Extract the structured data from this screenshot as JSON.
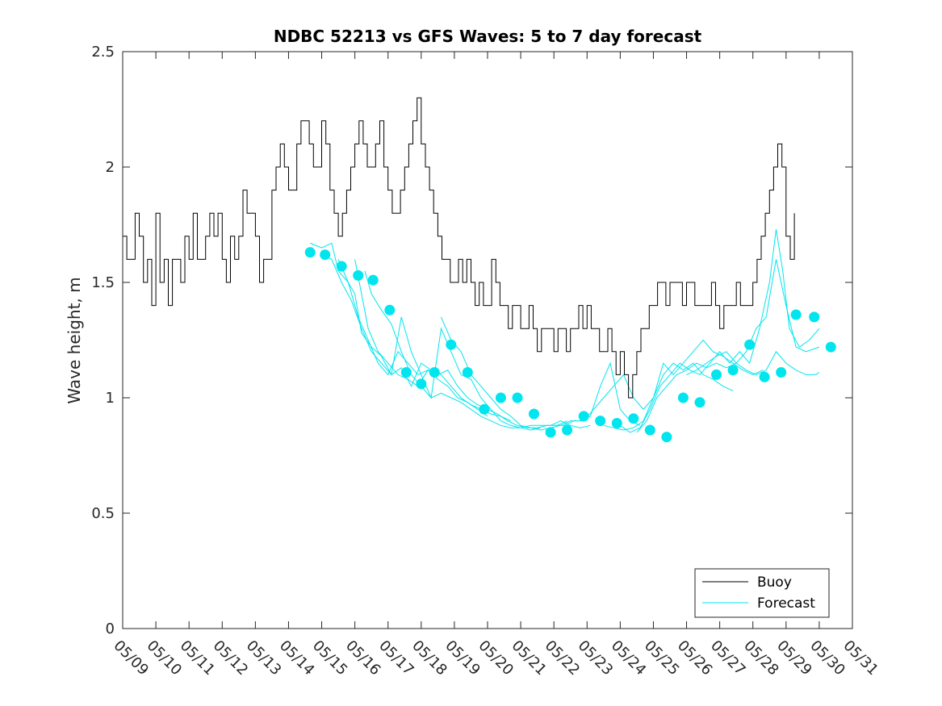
{
  "chart_data": {
    "type": "line",
    "title": "NDBC 52213 vs GFS Waves: 5 to 7 day forecast",
    "xlabel": "",
    "ylabel": "Wave height, m",
    "xlim": [
      "05/09",
      "05/31"
    ],
    "ylim": [
      0,
      2.5
    ],
    "x_ticks": [
      "05/09",
      "05/10",
      "05/11",
      "05/12",
      "05/13",
      "05/14",
      "05/15",
      "05/16",
      "05/17",
      "05/18",
      "05/19",
      "05/20",
      "05/21",
      "05/22",
      "05/23",
      "05/24",
      "05/25",
      "05/26",
      "05/27",
      "05/28",
      "05/29",
      "05/30",
      "05/31"
    ],
    "y_ticks": [
      "0",
      "0.5",
      "1",
      "1.5",
      "2",
      "2.5"
    ],
    "grid": false,
    "legend_position": "bottom-right",
    "legend": [
      {
        "label": "Buoy",
        "color": "#000000"
      },
      {
        "label": "Forecast",
        "color": "#00e5ee"
      }
    ],
    "colors": {
      "buoy": "#000000",
      "forecast": "#00e5ee",
      "marker": "#00e5ee"
    },
    "series": [
      {
        "name": "Buoy",
        "x_start": "05/09",
        "x_step_days": 0.125,
        "values": [
          1.7,
          1.6,
          1.6,
          1.8,
          1.7,
          1.5,
          1.6,
          1.4,
          1.8,
          1.5,
          1.6,
          1.4,
          1.6,
          1.6,
          1.5,
          1.7,
          1.6,
          1.8,
          1.6,
          1.6,
          1.7,
          1.8,
          1.7,
          1.8,
          1.6,
          1.5,
          1.7,
          1.6,
          1.7,
          1.9,
          1.8,
          1.8,
          1.7,
          1.5,
          1.6,
          1.6,
          1.9,
          2.0,
          2.1,
          2.0,
          1.9,
          1.9,
          2.1,
          2.2,
          2.2,
          2.1,
          2.0,
          2.0,
          2.2,
          2.1,
          1.9,
          1.8,
          1.7,
          1.8,
          1.9,
          2.0,
          2.1,
          2.2,
          2.1,
          2.0,
          2.0,
          2.1,
          2.2,
          2.0,
          1.9,
          1.8,
          1.8,
          1.9,
          2.0,
          2.1,
          2.2,
          2.3,
          2.1,
          2.0,
          1.9,
          1.8,
          1.7,
          1.6,
          1.6,
          1.5,
          1.5,
          1.6,
          1.5,
          1.6,
          1.5,
          1.4,
          1.5,
          1.4,
          1.4,
          1.6,
          1.5,
          1.4,
          1.4,
          1.3,
          1.4,
          1.4,
          1.3,
          1.3,
          1.4,
          1.3,
          1.2,
          1.3,
          1.3,
          1.3,
          1.2,
          1.3,
          1.3,
          1.2,
          1.3,
          1.3,
          1.4,
          1.3,
          1.4,
          1.3,
          1.3,
          1.2,
          1.2,
          1.3,
          1.2,
          1.1,
          1.2,
          1.1,
          1.0,
          1.1,
          1.2,
          1.3,
          1.3,
          1.4,
          1.4,
          1.5,
          1.5,
          1.4,
          1.5,
          1.5,
          1.5,
          1.4,
          1.5,
          1.5,
          1.4,
          1.4,
          1.4,
          1.4,
          1.5,
          1.4,
          1.3,
          1.4,
          1.4,
          1.4,
          1.5,
          1.4,
          1.4,
          1.4,
          1.5,
          1.6,
          1.7,
          1.8,
          1.9,
          2.0,
          2.1,
          2.0,
          1.7,
          1.6,
          1.8
        ]
      },
      {
        "name": "",
        "points": [
          [
            5.65,
            1.67
          ],
          [
            6.0,
            1.65
          ],
          [
            6.3,
            1.67
          ],
          [
            6.5,
            1.55
          ],
          [
            6.8,
            1.5
          ],
          [
            7.1,
            1.35
          ],
          [
            7.4,
            1.25
          ],
          [
            7.7,
            1.15
          ],
          [
            8.0,
            1.1
          ],
          [
            8.3,
            1.2
          ],
          [
            8.6,
            1.15
          ],
          [
            8.9,
            1.1
          ],
          [
            9.2,
            1.12
          ],
          [
            9.5,
            1.08
          ],
          [
            9.8,
            1.05
          ],
          [
            10.1,
            1.0
          ],
          [
            10.4,
            0.98
          ],
          [
            10.7,
            0.95
          ],
          [
            11.0,
            0.92
          ]
        ]
      },
      {
        "name": "",
        "points": [
          [
            6.0,
            1.62
          ],
          [
            6.3,
            1.6
          ],
          [
            6.6,
            1.5
          ],
          [
            6.9,
            1.42
          ],
          [
            7.2,
            1.3
          ],
          [
            7.5,
            1.2
          ],
          [
            7.8,
            1.15
          ],
          [
            8.1,
            1.1
          ],
          [
            8.4,
            1.13
          ],
          [
            8.7,
            1.05
          ],
          [
            9.0,
            1.15
          ],
          [
            9.3,
            1.12
          ],
          [
            9.6,
            1.1
          ],
          [
            9.9,
            1.05
          ],
          [
            10.2,
            1.0
          ],
          [
            10.5,
            0.97
          ],
          [
            10.8,
            0.95
          ],
          [
            11.1,
            0.93
          ],
          [
            11.4,
            0.92
          ],
          [
            11.7,
            0.9
          ]
        ]
      },
      {
        "name": "",
        "points": [
          [
            6.5,
            1.6
          ],
          [
            6.8,
            1.5
          ],
          [
            7.0,
            1.45
          ],
          [
            7.2,
            1.28
          ],
          [
            7.5,
            1.22
          ],
          [
            7.8,
            1.18
          ],
          [
            8.1,
            1.1
          ],
          [
            8.4,
            1.35
          ],
          [
            8.7,
            1.2
          ],
          [
            9.0,
            1.1
          ],
          [
            9.3,
            1.0
          ],
          [
            9.6,
            1.3
          ],
          [
            9.9,
            1.2
          ],
          [
            10.2,
            1.1
          ],
          [
            10.5,
            1.08
          ],
          [
            10.8,
            1.0
          ],
          [
            11.1,
            0.95
          ],
          [
            11.4,
            0.9
          ],
          [
            11.7,
            0.88
          ],
          [
            12.0,
            0.87
          ],
          [
            12.3,
            0.86
          ],
          [
            12.6,
            0.87
          ]
        ]
      },
      {
        "name": "",
        "points": [
          [
            7.0,
            1.6
          ],
          [
            7.2,
            1.45
          ],
          [
            7.4,
            1.3
          ],
          [
            7.7,
            1.2
          ],
          [
            8.0,
            1.15
          ],
          [
            8.3,
            1.1
          ],
          [
            8.6,
            1.08
          ],
          [
            8.9,
            1.05
          ],
          [
            9.2,
            1.12
          ],
          [
            9.5,
            1.1
          ],
          [
            9.8,
            1.12
          ],
          [
            10.1,
            1.05
          ],
          [
            10.4,
            1.0
          ],
          [
            10.7,
            0.97
          ],
          [
            11.0,
            0.95
          ],
          [
            11.3,
            0.93
          ],
          [
            11.6,
            0.9
          ],
          [
            11.9,
            0.88
          ],
          [
            12.2,
            0.87
          ],
          [
            12.5,
            0.87
          ],
          [
            12.8,
            0.88
          ],
          [
            13.1,
            0.88
          ],
          [
            13.4,
            0.9
          ]
        ]
      },
      {
        "name": "",
        "points": [
          [
            7.3,
            1.55
          ],
          [
            7.5,
            1.45
          ],
          [
            7.8,
            1.38
          ],
          [
            8.1,
            1.32
          ],
          [
            8.4,
            1.2
          ],
          [
            8.7,
            1.1
          ],
          [
            9.0,
            1.05
          ],
          [
            9.3,
            1.0
          ],
          [
            9.6,
            1.02
          ],
          [
            9.9,
            1.0
          ],
          [
            10.2,
            0.98
          ],
          [
            10.5,
            0.95
          ],
          [
            10.8,
            0.92
          ],
          [
            11.1,
            0.9
          ],
          [
            11.4,
            0.88
          ],
          [
            11.7,
            0.87
          ],
          [
            12.0,
            0.87
          ],
          [
            12.3,
            0.88
          ],
          [
            12.6,
            0.88
          ],
          [
            12.9,
            0.88
          ],
          [
            13.2,
            0.9
          ],
          [
            13.5,
            0.88
          ],
          [
            13.8,
            0.87
          ],
          [
            14.1,
            0.88
          ]
        ]
      },
      {
        "name": "",
        "points": [
          [
            9.6,
            1.35
          ],
          [
            9.9,
            1.25
          ],
          [
            10.2,
            1.2
          ],
          [
            10.5,
            1.1
          ],
          [
            10.8,
            1.05
          ],
          [
            11.1,
            1.0
          ],
          [
            11.4,
            0.95
          ],
          [
            11.7,
            0.92
          ],
          [
            12.0,
            0.88
          ],
          [
            12.3,
            0.87
          ],
          [
            12.6,
            0.86
          ],
          [
            12.9,
            0.87
          ],
          [
            13.2,
            0.88
          ],
          [
            13.5,
            0.9
          ],
          [
            13.8,
            0.9
          ],
          [
            14.1,
            0.92
          ],
          [
            14.4,
            1.05
          ],
          [
            14.7,
            1.15
          ],
          [
            15.0,
            0.95
          ],
          [
            15.3,
            0.9
          ],
          [
            15.6,
            0.88
          ]
        ]
      },
      {
        "name": "",
        "points": [
          [
            13.0,
            0.88
          ],
          [
            13.3,
            0.88
          ],
          [
            13.6,
            0.9
          ],
          [
            13.9,
            0.9
          ],
          [
            14.2,
            0.95
          ],
          [
            14.5,
            1.0
          ],
          [
            14.8,
            1.05
          ],
          [
            15.1,
            1.1
          ],
          [
            15.4,
            1.0
          ],
          [
            15.7,
            0.95
          ],
          [
            16.0,
            1.0
          ],
          [
            16.3,
            1.1
          ],
          [
            16.6,
            1.15
          ],
          [
            16.9,
            1.12
          ],
          [
            17.2,
            1.15
          ],
          [
            17.5,
            1.1
          ],
          [
            17.8,
            1.08
          ],
          [
            18.1,
            1.05
          ],
          [
            18.4,
            1.03
          ]
        ]
      },
      {
        "name": "",
        "points": [
          [
            14.5,
            0.88
          ],
          [
            14.8,
            0.87
          ],
          [
            15.1,
            0.86
          ],
          [
            15.4,
            0.87
          ],
          [
            15.7,
            0.9
          ],
          [
            16.0,
            1.0
          ],
          [
            16.3,
            1.15
          ],
          [
            16.6,
            1.1
          ],
          [
            16.9,
            1.15
          ],
          [
            17.2,
            1.2
          ],
          [
            17.5,
            1.25
          ],
          [
            17.8,
            1.2
          ],
          [
            18.1,
            1.18
          ],
          [
            18.4,
            1.15
          ],
          [
            18.7,
            1.12
          ],
          [
            19.0,
            1.1
          ],
          [
            19.3,
            1.12
          ]
        ]
      },
      {
        "name": "",
        "points": [
          [
            15.0,
            0.88
          ],
          [
            15.3,
            0.85
          ],
          [
            15.6,
            0.87
          ],
          [
            15.9,
            0.95
          ],
          [
            16.2,
            1.05
          ],
          [
            16.5,
            1.1
          ],
          [
            16.8,
            1.15
          ],
          [
            17.1,
            1.12
          ],
          [
            17.4,
            1.1
          ],
          [
            17.7,
            1.15
          ],
          [
            18.0,
            1.2
          ],
          [
            18.3,
            1.15
          ],
          [
            18.6,
            1.2
          ],
          [
            18.9,
            1.15
          ],
          [
            19.2,
            1.3
          ],
          [
            19.5,
            1.5
          ],
          [
            19.7,
            1.73
          ],
          [
            19.9,
            1.55
          ],
          [
            20.1,
            1.3
          ],
          [
            20.4,
            1.22
          ],
          [
            20.7,
            1.25
          ],
          [
            21.0,
            1.3
          ]
        ]
      },
      {
        "name": "",
        "points": [
          [
            15.5,
            0.85
          ],
          [
            15.8,
            0.9
          ],
          [
            16.1,
            1.0
          ],
          [
            16.4,
            1.05
          ],
          [
            16.7,
            1.1
          ],
          [
            17.0,
            1.12
          ],
          [
            17.3,
            1.15
          ],
          [
            17.6,
            1.13
          ],
          [
            17.9,
            1.15
          ],
          [
            18.2,
            1.13
          ],
          [
            18.5,
            1.15
          ],
          [
            18.8,
            1.2
          ],
          [
            19.1,
            1.3
          ],
          [
            19.4,
            1.35
          ],
          [
            19.7,
            1.6
          ],
          [
            20.0,
            1.4
          ],
          [
            20.3,
            1.22
          ],
          [
            20.6,
            1.2
          ],
          [
            21.0,
            1.22
          ]
        ]
      },
      {
        "name": "",
        "points": [
          [
            17.0,
            1.1
          ],
          [
            17.3,
            1.12
          ],
          [
            17.6,
            1.15
          ],
          [
            17.9,
            1.18
          ],
          [
            18.2,
            1.2
          ],
          [
            18.5,
            1.15
          ],
          [
            18.8,
            1.12
          ],
          [
            19.1,
            1.1
          ],
          [
            19.4,
            1.12
          ],
          [
            19.7,
            1.2
          ],
          [
            20.0,
            1.15
          ],
          [
            20.3,
            1.12
          ],
          [
            20.6,
            1.1
          ],
          [
            20.9,
            1.1
          ],
          [
            21.0,
            1.11
          ]
        ]
      },
      {
        "name": "",
        "marker": "circle",
        "points": [
          [
            5.65,
            1.63
          ],
          [
            6.1,
            1.62
          ],
          [
            6.6,
            1.57
          ],
          [
            7.1,
            1.53
          ],
          [
            7.55,
            1.51
          ],
          [
            8.05,
            1.38
          ],
          [
            8.55,
            1.11
          ],
          [
            9.0,
            1.06
          ],
          [
            9.4,
            1.11
          ],
          [
            9.9,
            1.23
          ],
          [
            10.4,
            1.11
          ],
          [
            10.9,
            0.95
          ],
          [
            11.4,
            1.0
          ],
          [
            11.9,
            1.0
          ],
          [
            12.4,
            0.93
          ],
          [
            12.9,
            0.85
          ],
          [
            13.4,
            0.86
          ],
          [
            13.9,
            0.92
          ],
          [
            14.4,
            0.9
          ],
          [
            14.9,
            0.89
          ],
          [
            15.4,
            0.91
          ],
          [
            15.9,
            0.86
          ],
          [
            16.4,
            0.83
          ],
          [
            16.9,
            1.0
          ],
          [
            17.4,
            0.98
          ],
          [
            17.9,
            1.1
          ],
          [
            18.4,
            1.12
          ],
          [
            18.9,
            1.23
          ],
          [
            19.35,
            1.09
          ],
          [
            19.85,
            1.11
          ],
          [
            20.3,
            1.36
          ],
          [
            20.85,
            1.35
          ],
          [
            21.35,
            1.22
          ]
        ]
      }
    ]
  }
}
